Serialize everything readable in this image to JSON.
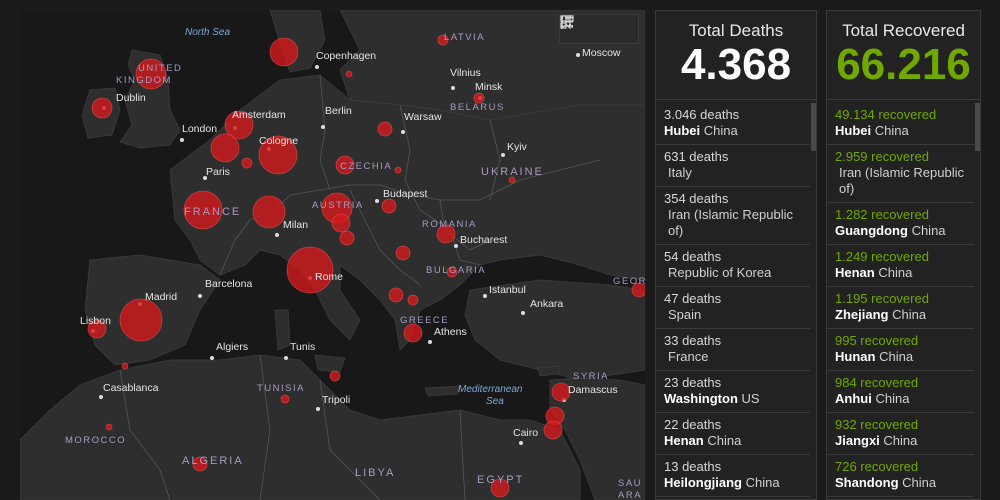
{
  "toolbar": {
    "bookmark_icon": "bookmark-icon",
    "list_icon": "list-icon",
    "qr_icon": "qr-icon"
  },
  "map": {
    "seas": {
      "north_sea": "North Sea",
      "med_1": "Mediterranean",
      "med_2": "Sea"
    },
    "countries": {
      "uk_1": "UNITED",
      "uk_2": "KINGDOM",
      "france": "FRANCE",
      "austria": "AUSTRIA",
      "czechia": "CZECHIA",
      "ukraine": "UKRAINE",
      "romania": "ROMANIA",
      "bulgaria": "BULGARIA",
      "belarus": "BELARUS",
      "latvia": "LATVIA",
      "greece": "GREECE",
      "tunisia": "TUNISIA",
      "morocco": "MOROCCO",
      "algeria": "ALGERIA",
      "libya": "LIBYA",
      "egypt": "EGYPT",
      "syria": "SYRIA",
      "georgia": "GEOR",
      "saudi_1": "SAU",
      "saudi_2": "ARA"
    },
    "cities": {
      "copenhagen": "Copenhagen",
      "moscow": "Moscow",
      "vilnius": "Vilnius",
      "minsk": "Minsk",
      "dublin": "Dublin",
      "amsterdam": "Amsterdam",
      "berlin": "Berlin",
      "warsaw": "Warsaw",
      "london": "London",
      "cologne": "Cologne",
      "kyiv": "Kyiv",
      "paris": "Paris",
      "budapest": "Budapest",
      "milan": "Milan",
      "bucharest": "Bucharest",
      "rome": "Rome",
      "barcelona": "Barcelona",
      "madrid": "Madrid",
      "istanbul": "Istanbul",
      "ankara": "Ankara",
      "lisbon": "Lisbon",
      "athens": "Athens",
      "algiers": "Algiers",
      "tunis": "Tunis",
      "casablanca": "Casablanca",
      "damascus": "Damascus",
      "tripoli": "Tripoli",
      "cairo": "Cairo"
    }
  },
  "deaths": {
    "title": "Total Deaths",
    "count": "4.368",
    "items": [
      {
        "num": "3.046 deaths",
        "place": "Hubei",
        "country": "China"
      },
      {
        "num": "631 deaths",
        "place": "",
        "country": "Italy"
      },
      {
        "num": "354 deaths",
        "place": "",
        "country": "Iran (Islamic Republic of)"
      },
      {
        "num": "54 deaths",
        "place": "",
        "country": "Republic of Korea"
      },
      {
        "num": "47 deaths",
        "place": "",
        "country": "Spain"
      },
      {
        "num": "33 deaths",
        "place": "",
        "country": "France"
      },
      {
        "num": "23 deaths",
        "place": "Washington",
        "country": "US"
      },
      {
        "num": "22 deaths",
        "place": "Henan",
        "country": "China"
      },
      {
        "num": "13 deaths",
        "place": "Heilongjiang",
        "country": "China"
      }
    ]
  },
  "recovered": {
    "title": "Total Recovered",
    "count": "66.216",
    "items": [
      {
        "num": "49.134 recovered",
        "place": "Hubei",
        "country": "China"
      },
      {
        "num": "2.959 recovered",
        "place": "",
        "country": "Iran (Islamic Republic of)"
      },
      {
        "num": "1.282 recovered",
        "place": "Guangdong",
        "country": "China"
      },
      {
        "num": "1.249 recovered",
        "place": "Henan",
        "country": "China"
      },
      {
        "num": "1.195 recovered",
        "place": "Zhejiang",
        "country": "China"
      },
      {
        "num": "995 recovered",
        "place": "Hunan",
        "country": "China"
      },
      {
        "num": "984 recovered",
        "place": "Anhui",
        "country": "China"
      },
      {
        "num": "932 recovered",
        "place": "Jiangxi",
        "country": "China"
      },
      {
        "num": "726 recovered",
        "place": "Shandong",
        "country": "China"
      }
    ]
  },
  "colors": {
    "bubble": "#d7191c",
    "recovered": "#70a800",
    "map_land": "#2e2e2e",
    "map_water": "#181818"
  }
}
